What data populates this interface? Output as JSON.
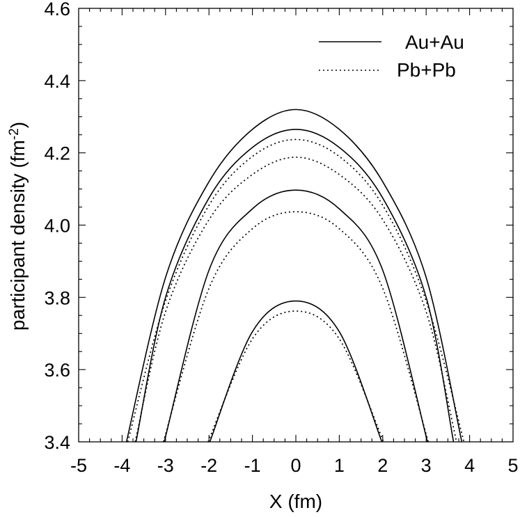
{
  "chart_data": {
    "type": "line",
    "title": "",
    "xlabel": "X (fm)",
    "ylabel_main": "participant density (fm",
    "ylabel_sup": "-2",
    "ylabel_close": ")",
    "xlim": [
      -5,
      5
    ],
    "ylim": [
      3.4,
      4.6
    ],
    "xticks": [
      -5,
      -4,
      -3,
      -2,
      -1,
      0,
      1,
      2,
      3,
      4,
      5
    ],
    "xtick_labels": [
      "-5",
      "-4",
      "-3",
      "-2",
      "-1",
      "0",
      "1",
      "2",
      "3",
      "4",
      "5"
    ],
    "yticks": [
      3.4,
      3.6,
      3.8,
      4.0,
      4.2,
      4.4,
      4.6
    ],
    "ytick_labels": [
      "3.4",
      "3.6",
      "3.8",
      "4.0",
      "4.2",
      "4.4",
      "4.6"
    ],
    "grid": false,
    "legend_position": "top-right",
    "legend": [
      {
        "label": "Au+Au",
        "style": "solid"
      },
      {
        "label": "Pb+Pb",
        "style": "dotted"
      }
    ],
    "series": [
      {
        "group": "Au+Au",
        "style": "solid",
        "x": [
          -3.9,
          -3,
          -2,
          -1,
          0,
          1,
          2,
          3,
          3.82
        ],
        "y": [
          3.4,
          3.855,
          4.12,
          4.265,
          4.32,
          4.265,
          4.12,
          3.855,
          3.4
        ]
      },
      {
        "group": "Au+Au",
        "style": "solid",
        "x": [
          -3.68,
          -3,
          -2,
          -1,
          0,
          1,
          2,
          3,
          3.63
        ],
        "y": [
          3.4,
          3.8,
          4.075,
          4.215,
          4.265,
          4.215,
          4.075,
          3.8,
          3.4
        ]
      },
      {
        "group": "Au+Au",
        "style": "solid",
        "x": [
          -3.03,
          -2,
          -1,
          0,
          1,
          2,
          3.03
        ],
        "y": [
          3.4,
          3.875,
          4.045,
          4.097,
          4.045,
          3.875,
          3.4
        ]
      },
      {
        "group": "Au+Au",
        "style": "solid",
        "x": [
          -1.98,
          -1,
          0,
          1,
          1.98
        ],
        "y": [
          3.4,
          3.705,
          3.79,
          3.705,
          3.4
        ]
      },
      {
        "group": "Pb+Pb",
        "style": "dotted",
        "x": [
          -3.87,
          -3,
          -2,
          -1,
          0,
          1,
          2,
          3,
          3.87
        ],
        "y": [
          3.4,
          3.79,
          4.055,
          4.19,
          4.237,
          4.19,
          4.055,
          3.79,
          3.4
        ]
      },
      {
        "group": "Pb+Pb",
        "style": "dotted",
        "x": [
          -3.7,
          -3,
          -2,
          -1,
          0,
          1,
          2,
          3,
          3.7
        ],
        "y": [
          3.4,
          3.76,
          4.015,
          4.14,
          4.188,
          4.14,
          4.015,
          3.76,
          3.4
        ]
      },
      {
        "group": "Pb+Pb",
        "style": "dotted",
        "x": [
          -3.05,
          -2,
          -1,
          0,
          1,
          2,
          3.05
        ],
        "y": [
          3.4,
          3.825,
          3.99,
          4.037,
          3.99,
          3.825,
          3.4
        ]
      },
      {
        "group": "Pb+Pb",
        "style": "dotted",
        "x": [
          -2.02,
          -1,
          0,
          1,
          2.02
        ],
        "y": [
          3.4,
          3.685,
          3.762,
          3.685,
          3.4
        ]
      }
    ]
  }
}
